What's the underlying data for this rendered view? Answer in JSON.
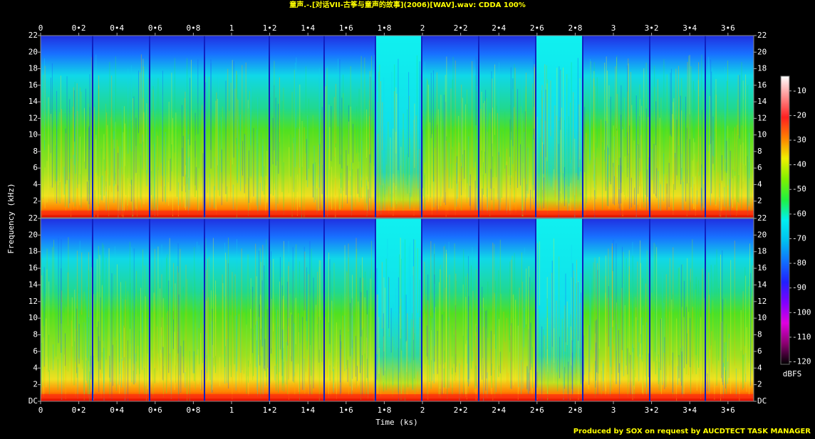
{
  "chart_data": {
    "type": "spectrogram",
    "title": "童声.-.[对话VII-古筝与童声的故事](2006)[WAV].wav: CDDA 100%",
    "xlabel": "Time (ks)",
    "ylabel": "Frequency (kHz)",
    "xlim": [
      0,
      3.735
    ],
    "xticks": [
      0,
      {
        "value": 0.2,
        "label": "0•2"
      },
      {
        "value": 0.4,
        "label": "0•4"
      },
      {
        "value": 0.6,
        "label": "0•6"
      },
      {
        "value": 0.8,
        "label": "0•8"
      },
      1,
      {
        "value": 1.2,
        "label": "1•2"
      },
      {
        "value": 1.4,
        "label": "1•4"
      },
      {
        "value": 1.6,
        "label": "1•6"
      },
      {
        "value": 1.8,
        "label": "1•8"
      },
      2,
      {
        "value": 2.2,
        "label": "2•2"
      },
      {
        "value": 2.4,
        "label": "2•4"
      },
      {
        "value": 2.6,
        "label": "2•6"
      },
      {
        "value": 2.8,
        "label": "2•8"
      },
      3,
      {
        "value": 3.2,
        "label": "3•2"
      },
      {
        "value": 3.4,
        "label": "3•4"
      },
      {
        "value": 3.6,
        "label": "3•6"
      }
    ],
    "panels": [
      {
        "ylim": [
          0,
          22
        ],
        "yticks": [
          2,
          4,
          6,
          8,
          10,
          12,
          14,
          16,
          18,
          20,
          22
        ]
      },
      {
        "ylim": [
          0,
          22
        ],
        "yticks": [
          {
            "value": 0,
            "label": "DC"
          },
          2,
          4,
          6,
          8,
          10,
          12,
          14,
          16,
          18,
          20,
          22
        ]
      }
    ],
    "colorbar": {
      "label": "dBFS",
      "lim": [
        -121,
        -4
      ],
      "ticks": [
        -10,
        -20,
        -30,
        -40,
        -50,
        -60,
        -70,
        -80,
        -90,
        -100,
        -110,
        -120
      ],
      "colors": [
        "#000000",
        "#8a0070",
        "#e000e0",
        "#8000ff",
        "#2020ff",
        "#1070ff",
        "#00c0f0",
        "#00f0f0",
        "#20f040",
        "#80f000",
        "#f0f000",
        "#ff8000",
        "#ff2020",
        "#ff9090",
        "#ffffff"
      ]
    }
  },
  "footer": "Produced by SOX on request by AUCDTECT TASK MANAGER"
}
